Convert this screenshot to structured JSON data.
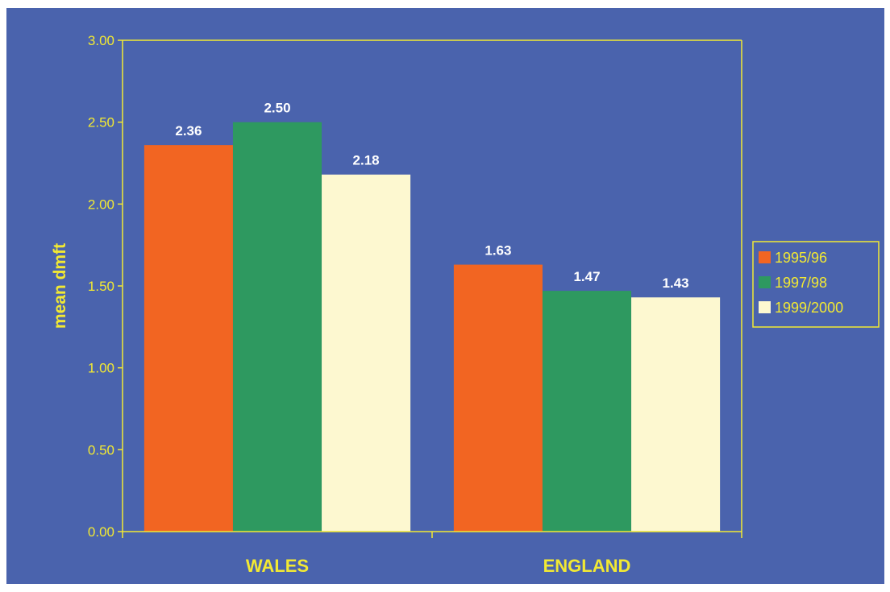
{
  "chart_data": {
    "type": "bar",
    "title": "",
    "xlabel": "",
    "ylabel": "mean dmft",
    "categories": [
      "WALES",
      "ENGLAND"
    ],
    "series": [
      {
        "name": "1995/96",
        "values": [
          2.36,
          1.63
        ],
        "color": "#f26522",
        "label_text": [
          "2.36",
          "1.63"
        ]
      },
      {
        "name": "1997/98",
        "values": [
          2.5,
          1.47
        ],
        "color": "#2e9960",
        "label_text": [
          "2.50",
          "1.47"
        ]
      },
      {
        "name": "1999/2000",
        "values": [
          2.18,
          1.43
        ],
        "color": "#fdf8d0",
        "label_text": [
          "2.18",
          "1.43"
        ]
      }
    ],
    "ylim": [
      0,
      3.0
    ],
    "yticks": [
      "0.00",
      "0.50",
      "1.00",
      "1.50",
      "2.00",
      "2.50",
      "3.00"
    ],
    "grid": false,
    "legend_position": "right",
    "colors": {
      "background": "#4a63ad",
      "axis": "#f2e933",
      "text": "#f2e933",
      "data_label": "#ffffff"
    }
  }
}
